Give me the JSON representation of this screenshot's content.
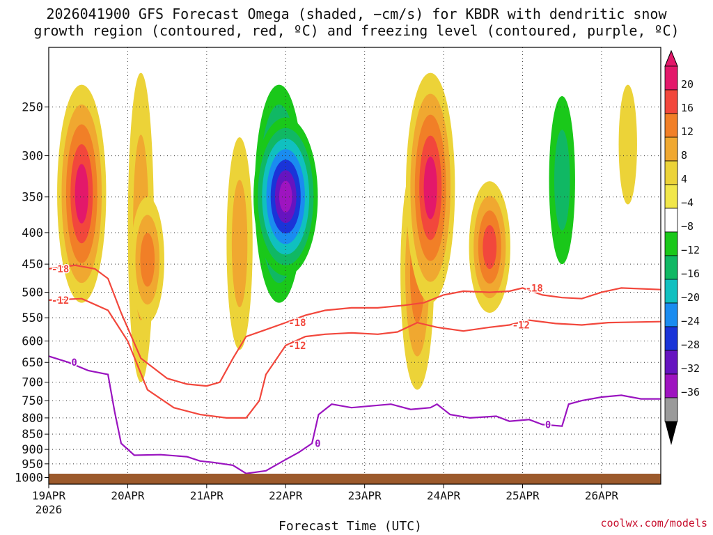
{
  "title_line1": "2026041900 GFS Forecast Omega (shaded, −cm/s) for KBDR with dendritic snow",
  "title_line2": "growth region (contoured, red, ºC) and freezing level (contoured, purple, ºC)",
  "credit": "coolwx.com/models",
  "chart_data": {
    "type": "heatmap",
    "title": "2026041900 GFS Forecast Omega (shaded, −cm/s) for KBDR with dendritic snow growth region (contoured, red, ºC) and freezing level (contoured, purple, ºC)",
    "xlabel": "Forecast Time (UTC)",
    "ylabel": "",
    "x_ticks": [
      {
        "label": "19APR",
        "sub": "2026",
        "hour": 0
      },
      {
        "label": "20APR",
        "hour": 24
      },
      {
        "label": "21APR",
        "hour": 48
      },
      {
        "label": "22APR",
        "hour": 72
      },
      {
        "label": "23APR",
        "hour": 96
      },
      {
        "label": "24APR",
        "hour": 120
      },
      {
        "label": "25APR",
        "hour": 144
      },
      {
        "label": "26APR",
        "hour": 168
      }
    ],
    "xlim": [
      0,
      186
    ],
    "y_ticks": [
      250,
      300,
      350,
      400,
      450,
      500,
      550,
      600,
      650,
      700,
      750,
      800,
      850,
      900,
      950,
      1000
    ],
    "ylim_hpa": [
      200,
      1025
    ],
    "colorbar": {
      "labels": [
        "20",
        "16",
        "12",
        "8",
        "4",
        "−4",
        "−8",
        "−12",
        "−16",
        "−20",
        "−24",
        "−28",
        "−32",
        "−36"
      ],
      "colors": [
        "#e3186a",
        "#f2473c",
        "#f17f27",
        "#f0a830",
        "#ecd338",
        "#f1e74a",
        "#ffffff",
        "#1ac81a",
        "#10b864",
        "#10c0c0",
        "#1a8cf0",
        "#1a34d8",
        "#6614c0",
        "#9e14c0",
        "#9a9a9a",
        "#000000"
      ]
    },
    "omega_cells": [
      {
        "t": 10,
        "p_top": 230,
        "p_bot": 520,
        "v": 20
      },
      {
        "t": 28,
        "p_top": 220,
        "p_bot": 700,
        "v": 10
      },
      {
        "t": 30,
        "p_top": 350,
        "p_bot": 560,
        "v": 14
      },
      {
        "t": 58,
        "p_top": 280,
        "p_bot": 620,
        "v": 8
      },
      {
        "t": 70,
        "p_top": 230,
        "p_bot": 520,
        "v": -22
      },
      {
        "t": 72,
        "p_top": 260,
        "p_bot": 470,
        "v": -28
      },
      {
        "t": 112,
        "p_top": 300,
        "p_bot": 720,
        "v": 14
      },
      {
        "t": 116,
        "p_top": 220,
        "p_bot": 520,
        "v": 20
      },
      {
        "t": 134,
        "p_top": 330,
        "p_bot": 540,
        "v": 18
      },
      {
        "t": 156,
        "p_top": 240,
        "p_bot": 450,
        "v": -10
      },
      {
        "t": 176,
        "p_top": 230,
        "p_bot": 360,
        "v": 5
      }
    ],
    "dgz_labels": [
      "-18",
      "-12",
      "-18",
      "-12",
      "-18",
      "-12"
    ],
    "contours": [
      {
        "name": "-18C",
        "color": "#f2473c",
        "label": "-18",
        "points": [
          [
            0,
            458
          ],
          [
            8,
            452
          ],
          [
            14,
            458
          ],
          [
            18,
            475
          ],
          [
            22,
            540
          ],
          [
            28,
            640
          ],
          [
            36,
            690
          ],
          [
            42,
            705
          ],
          [
            48,
            710
          ],
          [
            52,
            700
          ],
          [
            56,
            640
          ],
          [
            60,
            590
          ],
          [
            66,
            575
          ],
          [
            72,
            560
          ],
          [
            78,
            545
          ],
          [
            84,
            535
          ],
          [
            92,
            530
          ],
          [
            100,
            530
          ],
          [
            108,
            525
          ],
          [
            114,
            520
          ],
          [
            120,
            505
          ],
          [
            126,
            498
          ],
          [
            134,
            500
          ],
          [
            140,
            498
          ],
          [
            144,
            492
          ],
          [
            150,
            505
          ],
          [
            156,
            510
          ],
          [
            162,
            512
          ],
          [
            168,
            500
          ],
          [
            174,
            492
          ],
          [
            186,
            495
          ]
        ]
      },
      {
        "name": "-12C",
        "color": "#f2473c",
        "label": "-12",
        "points": [
          [
            0,
            515
          ],
          [
            10,
            512
          ],
          [
            18,
            535
          ],
          [
            24,
            600
          ],
          [
            30,
            720
          ],
          [
            38,
            770
          ],
          [
            46,
            790
          ],
          [
            54,
            800
          ],
          [
            60,
            800
          ],
          [
            64,
            750
          ],
          [
            66,
            680
          ],
          [
            72,
            610
          ],
          [
            78,
            590
          ],
          [
            84,
            585
          ],
          [
            92,
            582
          ],
          [
            100,
            585
          ],
          [
            106,
            580
          ],
          [
            112,
            560
          ],
          [
            118,
            570
          ],
          [
            126,
            578
          ],
          [
            134,
            570
          ],
          [
            140,
            565
          ],
          [
            146,
            555
          ],
          [
            154,
            562
          ],
          [
            162,
            565
          ],
          [
            170,
            560
          ],
          [
            186,
            558
          ]
        ]
      },
      {
        "name": "0C",
        "color": "#9a14c0",
        "label": "0",
        "points": [
          [
            0,
            635
          ],
          [
            6,
            650
          ],
          [
            12,
            670
          ],
          [
            18,
            680
          ],
          [
            20,
            780
          ],
          [
            22,
            880
          ],
          [
            26,
            920
          ],
          [
            34,
            918
          ],
          [
            42,
            925
          ],
          [
            46,
            940
          ],
          [
            50,
            945
          ],
          [
            56,
            955
          ],
          [
            60,
            985
          ],
          [
            66,
            975
          ],
          [
            72,
            935
          ],
          [
            76,
            910
          ],
          [
            80,
            880
          ],
          [
            82,
            790
          ],
          [
            86,
            760
          ],
          [
            92,
            770
          ],
          [
            98,
            765
          ],
          [
            104,
            760
          ],
          [
            110,
            775
          ],
          [
            116,
            770
          ],
          [
            118,
            760
          ],
          [
            122,
            790
          ],
          [
            128,
            800
          ],
          [
            136,
            795
          ],
          [
            140,
            810
          ],
          [
            146,
            805
          ],
          [
            150,
            820
          ],
          [
            156,
            825
          ],
          [
            158,
            760
          ],
          [
            162,
            750
          ],
          [
            168,
            740
          ],
          [
            174,
            735
          ],
          [
            180,
            745
          ],
          [
            186,
            745
          ]
        ]
      }
    ]
  }
}
